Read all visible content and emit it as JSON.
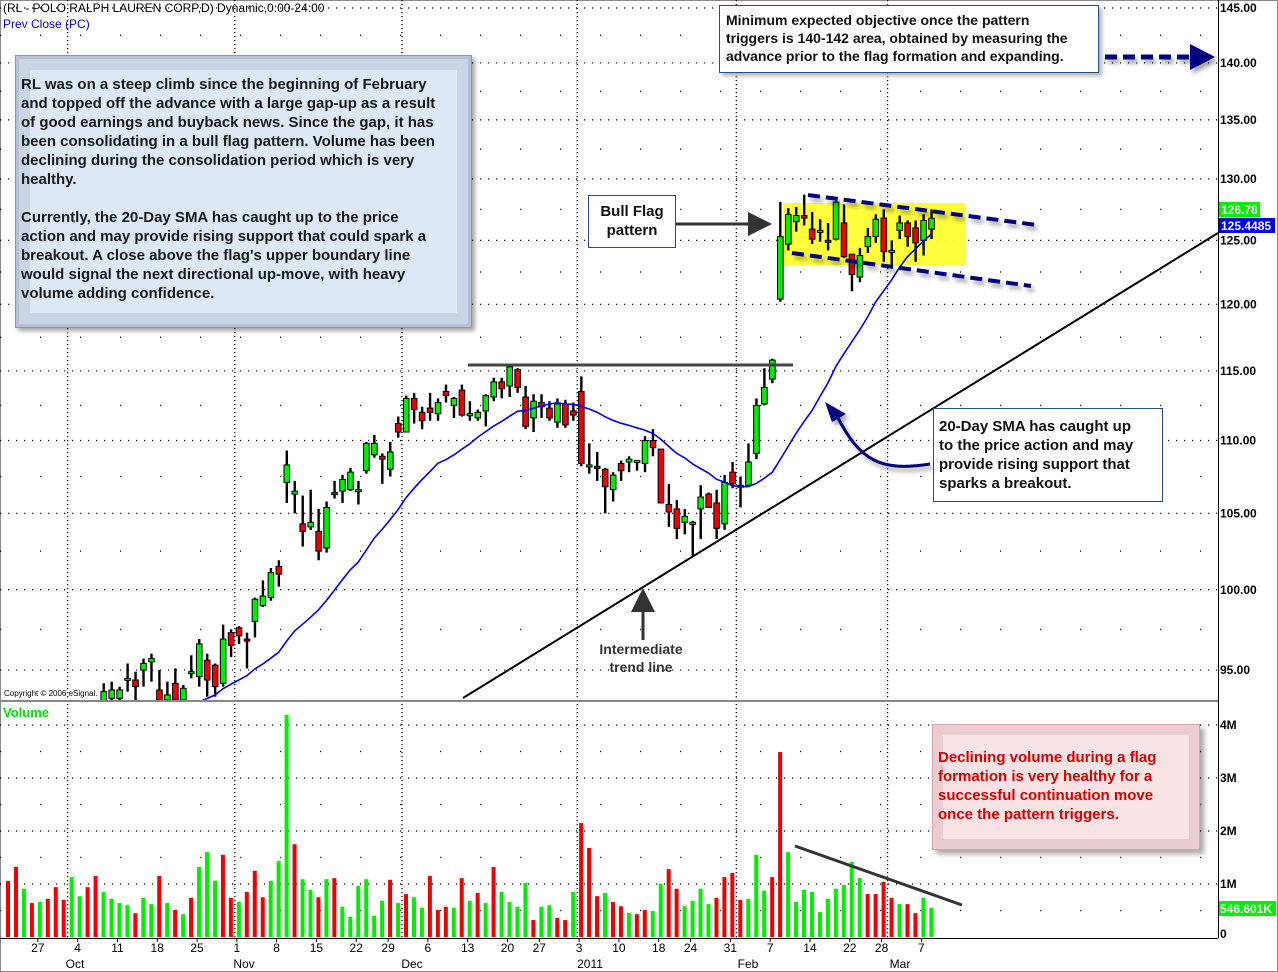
{
  "header": {
    "title": "(RL - POLO RALPH LAUREN CORP,D) Dynamic,0:00-24:00",
    "subtitle": "Prev Close (PC)"
  },
  "copyright": "Copyright © 2006 eSignal.",
  "volume_label": "Volume",
  "annotations": {
    "main_note": {
      "p1": [
        "RL was on a steep climb since the beginning of February",
        "and topped off the advance with a large gap-up as a result",
        "of good earnings and buyback news. Since the gap, it has",
        "been consolidating in a bull flag pattern. Volume has been",
        "declining during the consolidation period which is very",
        "healthy."
      ],
      "p2": [
        "Currently, the 20-Day SMA has caught up to the price",
        "action and may provide rising support that could spark a",
        "breakout. A close above the flag's upper boundary line",
        "would signal the next directional up-move, with heavy",
        "volume adding confidence."
      ]
    },
    "objective_note": [
      "Minimum expected objective once the pattern",
      "triggers is 140-142 area, obtained by measuring the",
      "advance prior to the flag formation and expanding."
    ],
    "bull_flag_label": [
      "Bull Flag",
      "pattern"
    ],
    "sma_note": [
      "20-Day SMA has caught up",
      "to the price action and may",
      "provide rising support that",
      "sparks a breakout."
    ],
    "trend_label": [
      "Intermediate",
      "trend line"
    ],
    "volume_note": [
      "Declining volume during a flag",
      "formation is very healthy for a",
      "successful continuation move",
      "once the pattern triggers."
    ]
  },
  "colors": {
    "up": "#00ee00",
    "down": "#ee0000",
    "sma": "#0000ee",
    "annotation_arrow": "#000080",
    "flag_highlight": "#ffff33",
    "last_price_bg": "#00ee00",
    "sma_value_bg": "#0000ee"
  },
  "chart_data": {
    "type": "candlestick",
    "price_scale": "log",
    "price_axis": {
      "ylim": [
        93.2,
        145
      ],
      "ticks": [
        "145.00",
        "140.00",
        "135.00",
        "130.00",
        "125.00",
        "120.00",
        "115.00",
        "110.00",
        "105.00",
        "100.00",
        "95.00"
      ]
    },
    "volume_axis": {
      "ylim": [
        0,
        4.4
      ],
      "unit": "M",
      "ticks": [
        "4M",
        "3M",
        "2M",
        "1M",
        "0"
      ]
    },
    "x_ticks": [
      "27",
      "4",
      "11",
      "18",
      "25",
      "1",
      "8",
      "15",
      "22",
      "29",
      "6",
      "13",
      "20",
      "27",
      "3",
      "10",
      "18",
      "24",
      "31",
      "7",
      "14",
      "22",
      "28",
      "7"
    ],
    "month_labels": [
      "Oct",
      "Nov",
      "Dec",
      "2011",
      "Feb",
      "Mar"
    ],
    "last_price": "126.78",
    "sma_period": 20,
    "sma_value": "125.4485",
    "last_volume": "546.601K",
    "ohlc": [
      [
        90.5,
        90.8,
        89.6,
        89.8
      ],
      [
        89.8,
        90.0,
        88.9,
        89.1
      ],
      [
        89.2,
        90.4,
        89.0,
        90.2
      ],
      [
        90.2,
        90.5,
        89.3,
        89.6
      ],
      [
        89.6,
        90.9,
        89.4,
        90.7
      ],
      [
        90.7,
        91.0,
        90.0,
        90.2
      ],
      [
        90.2,
        90.4,
        89.5,
        89.8
      ],
      [
        89.9,
        90.1,
        89.3,
        89.5
      ],
      [
        89.6,
        91.2,
        89.5,
        91.0
      ],
      [
        91.0,
        92.2,
        90.8,
        92.0
      ],
      [
        92.0,
        92.4,
        91.4,
        91.6
      ],
      [
        91.6,
        92.0,
        91.0,
        91.3
      ],
      [
        92.9,
        94.2,
        92.7,
        93.7
      ],
      [
        93.3,
        94.3,
        93.0,
        93.8
      ],
      [
        93.3,
        94.0,
        93.0,
        93.8
      ],
      [
        94.4,
        95.4,
        93.7,
        94.5
      ],
      [
        94.4,
        94.9,
        93.2,
        94.0
      ],
      [
        95.0,
        95.7,
        94.0,
        95.4
      ],
      [
        95.5,
        96.0,
        94.3,
        95.7
      ],
      [
        93.8,
        95.0,
        92.8,
        93.2
      ],
      [
        93.2,
        94.3,
        92.9,
        93.5
      ],
      [
        94.2,
        95.1,
        92.8,
        93.2
      ],
      [
        93.2,
        94.1,
        92.8,
        93.9
      ],
      [
        94.8,
        95.9,
        94.5,
        94.9
      ],
      [
        94.6,
        96.9,
        94.0,
        96.6
      ],
      [
        95.6,
        96.0,
        93.4,
        94.4
      ],
      [
        95.3,
        95.4,
        93.4,
        94.0
      ],
      [
        94.2,
        97.8,
        94.0,
        96.9
      ],
      [
        97.3,
        97.5,
        95.8,
        96.5
      ],
      [
        97.6,
        97.7,
        96.6,
        97.1
      ],
      [
        96.9,
        97.3,
        95.1,
        96.8
      ],
      [
        98.0,
        99.5,
        97.0,
        99.4
      ],
      [
        99.0,
        100.6,
        98.9,
        99.6
      ],
      [
        99.5,
        101.4,
        99.3,
        101.1
      ],
      [
        101.5,
        101.9,
        100.2,
        101.0
      ],
      [
        107.1,
        109.3,
        105.7,
        108.3
      ],
      [
        106.3,
        107.2,
        105.0,
        106.5
      ],
      [
        104.3,
        106.2,
        102.8,
        103.8
      ],
      [
        104.1,
        106.6,
        103.9,
        104.4
      ],
      [
        103.8,
        105.3,
        101.9,
        102.5
      ],
      [
        102.7,
        105.8,
        102.4,
        105.4
      ],
      [
        106.4,
        107.2,
        106.0,
        106.3
      ],
      [
        106.5,
        107.6,
        105.7,
        107.3
      ],
      [
        106.6,
        108.1,
        106.5,
        107.8
      ],
      [
        106.5,
        107.2,
        105.6,
        106.6
      ],
      [
        107.9,
        109.9,
        107.7,
        109.8
      ],
      [
        109.0,
        110.4,
        108.8,
        109.8
      ],
      [
        108.9,
        109.1,
        107.0,
        108.7
      ],
      [
        108.0,
        109.9,
        107.5,
        109.2
      ],
      [
        111.2,
        111.7,
        110.2,
        110.6
      ],
      [
        110.6,
        113.2,
        110.6,
        113.0
      ],
      [
        113.0,
        113.4,
        111.2,
        112.2
      ],
      [
        112.0,
        112.4,
        110.8,
        111.4
      ],
      [
        112.3,
        113.4,
        111.4,
        112.0
      ],
      [
        111.9,
        113.0,
        111.4,
        112.7
      ],
      [
        113.5,
        114.0,
        112.7,
        113.2
      ],
      [
        112.5,
        113.1,
        111.6,
        113.0
      ],
      [
        113.6,
        114.0,
        111.7,
        111.8
      ],
      [
        111.9,
        112.8,
        111.4,
        111.9
      ],
      [
        111.6,
        112.2,
        111.4,
        112.0
      ],
      [
        112.1,
        113.3,
        111.0,
        113.2
      ],
      [
        113.1,
        114.5,
        112.8,
        114.2
      ],
      [
        114.2,
        114.5,
        113.0,
        113.7
      ],
      [
        113.9,
        115.4,
        113.1,
        115.3
      ],
      [
        115.1,
        115.2,
        113.4,
        113.8
      ],
      [
        113.1,
        113.9,
        110.8,
        111.0
      ],
      [
        111.6,
        113.3,
        110.6,
        112.8
      ],
      [
        112.7,
        113.3,
        111.6,
        112.4
      ],
      [
        112.3,
        112.8,
        111.4,
        111.6
      ],
      [
        111.3,
        113.0,
        110.9,
        112.6
      ],
      [
        112.6,
        112.9,
        110.9,
        111.1
      ],
      [
        112.1,
        112.7,
        111.4,
        111.8
      ],
      [
        113.5,
        114.6,
        108.2,
        108.4
      ],
      [
        108.3,
        109.8,
        107.7,
        108.3
      ],
      [
        108.2,
        109.2,
        107.2,
        108.1
      ],
      [
        108.0,
        108.1,
        105.0,
        106.8
      ],
      [
        106.6,
        107.8,
        105.8,
        107.6
      ],
      [
        108.4,
        108.6,
        107.2,
        107.9
      ],
      [
        108.5,
        108.9,
        107.8,
        108.7
      ],
      [
        108.6,
        108.6,
        107.9,
        108.6
      ],
      [
        108.4,
        110.3,
        107.8,
        110.0
      ],
      [
        110.0,
        110.8,
        108.9,
        109.5
      ],
      [
        109.4,
        109.4,
        105.7,
        105.7
      ],
      [
        105.6,
        107.0,
        104.1,
        105.1
      ],
      [
        105.3,
        105.9,
        103.3,
        104.0
      ],
      [
        104.4,
        105.3,
        103.6,
        104.8
      ],
      [
        104.3,
        104.5,
        102.2,
        104.4
      ],
      [
        105.3,
        106.9,
        103.3,
        106.1
      ],
      [
        106.3,
        106.4,
        105.4,
        105.4
      ],
      [
        105.7,
        106.6,
        103.3,
        104.0
      ],
      [
        104.3,
        107.6,
        103.9,
        107.1
      ],
      [
        107.8,
        108.5,
        106.7,
        107.0
      ],
      [
        106.8,
        107.5,
        105.4,
        106.9
      ],
      [
        106.9,
        109.8,
        106.9,
        108.5
      ],
      [
        109.1,
        113.0,
        108.7,
        112.5
      ],
      [
        112.6,
        115.2,
        112.5,
        113.8
      ],
      [
        114.4,
        115.9,
        114.1,
        115.8
      ],
      [
        120.4,
        128.1,
        120.2,
        125.3
      ],
      [
        124.7,
        127.6,
        124.2,
        127.1
      ],
      [
        126.5,
        127.7,
        125.7,
        127.0
      ],
      [
        127.0,
        128.7,
        126.2,
        126.8
      ],
      [
        125.9,
        127.3,
        124.7,
        125.1
      ],
      [
        125.8,
        126.7,
        124.9,
        125.8
      ],
      [
        125.0,
        126.4,
        124.2,
        124.9
      ],
      [
        125.1,
        128.2,
        125.0,
        128.1
      ],
      [
        126.4,
        127.9,
        123.6,
        123.7
      ],
      [
        123.9,
        123.9,
        121.0,
        122.3
      ],
      [
        122.1,
        124.4,
        121.7,
        123.8
      ],
      [
        124.5,
        126.0,
        124.0,
        125.3
      ],
      [
        125.3,
        127.1,
        124.8,
        126.7
      ],
      [
        126.8,
        127.5,
        123.3,
        124.1
      ],
      [
        124.1,
        125.0,
        123.0,
        124.2
      ],
      [
        125.8,
        127.0,
        125.1,
        126.4
      ],
      [
        126.4,
        126.6,
        124.5,
        125.3
      ],
      [
        126.0,
        126.6,
        123.3,
        124.8
      ],
      [
        125.0,
        127.1,
        123.8,
        126.6
      ],
      [
        125.9,
        127.5,
        125.1,
        126.78
      ]
    ],
    "volume_millions": [
      1.06,
      1.32,
      0.91,
      0.64,
      0.66,
      0.72,
      0.94,
      0.7,
      1.13,
      0.77,
      0.94,
      1.15,
      0.85,
      0.72,
      0.64,
      0.6,
      0.45,
      0.74,
      0.62,
      1.15,
      0.64,
      0.51,
      0.43,
      0.74,
      1.32,
      1.6,
      1.06,
      1.55,
      0.74,
      0.66,
      0.85,
      1.25,
      0.75,
      1.06,
      1.43,
      4.19,
      1.75,
      1.09,
      0.89,
      0.75,
      1.09,
      1.11,
      0.57,
      0.38,
      0.96,
      1.09,
      0.4,
      0.68,
      1.08,
      0.64,
      0.81,
      0.75,
      0.55,
      1.15,
      0.51,
      0.57,
      0.55,
      1.11,
      0.68,
      0.83,
      0.64,
      1.32,
      0.85,
      0.66,
      0.57,
      1.02,
      0.32,
      0.57,
      0.6,
      0.36,
      0.32,
      0.85,
      2.15,
      1.68,
      0.77,
      0.83,
      0.66,
      0.58,
      0.45,
      0.43,
      0.51,
      0.49,
      1.0,
      1.28,
      0.91,
      0.58,
      0.68,
      0.91,
      0.62,
      0.74,
      1.13,
      1.21,
      0.7,
      0.72,
      1.55,
      0.87,
      1.13,
      3.49,
      1.6,
      0.66,
      0.89,
      0.85,
      0.47,
      0.72,
      0.91,
      0.98,
      1.42,
      1.11,
      0.81,
      0.81,
      1.04,
      0.74,
      0.62,
      0.62,
      0.45,
      0.74,
      0.55
    ],
    "volume_direction": "ddududdduudduuuuduudududuuudduddduuuduududuuuuuududuudddudududuuuuduudduddduddudduudduuuudddduuudduuuuuuuuuuddddudduuuduuddduu"
  }
}
